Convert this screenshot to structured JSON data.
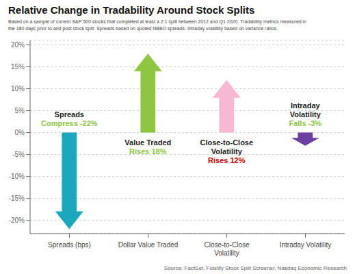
{
  "chart_data": {
    "type": "bar",
    "title": "Relative Change in Tradability Around Stock Splits",
    "subtitle": "Based on a sample of current S&P 500 stocks that completed at least a 2:1 split between 2012 and Q1 2020. Tradability metrics measured in\nthe 180 days prior to and post stock split. Spreads based on quoted NBBO spreads. Intraday volatility based on variance ratios.",
    "source": "Source: FactSet, Fidelity Stock Split Screener, Nasdaq Economic Research",
    "categories": [
      "Spreads (bps)",
      "Dollar Value Traded",
      "Close-to-Close\nVolatility",
      "Intraday Volatility"
    ],
    "values": [
      -22,
      18,
      12,
      -3
    ],
    "colors": [
      "#1aa8bf",
      "#8dc63f",
      "#f7b8d2",
      "#6b3fa0"
    ],
    "annotations": [
      {
        "title": "Spreads",
        "subtitle": "Compress -22%",
        "color": "#8dc63f"
      },
      {
        "title": "Value Traded",
        "subtitle": "Rises 18%",
        "color": "#8dc63f"
      },
      {
        "title": "Close-to-Close\nVolatility",
        "subtitle": "Rises 12%",
        "color": "#cc0000"
      },
      {
        "title": "Intraday\nVolatility",
        "subtitle": "Falls -3%",
        "color": "#8dc63f"
      }
    ],
    "ylim": [
      -23,
      21
    ],
    "yticks": [
      {
        "value": -20,
        "label": "-20%"
      },
      {
        "value": -15,
        "label": "-15%"
      },
      {
        "value": -10,
        "label": "-10%"
      },
      {
        "value": -5,
        "label": "-5%"
      },
      {
        "value": 0,
        "label": "0%"
      },
      {
        "value": 5,
        "label": "5%"
      },
      {
        "value": 10,
        "label": "10%"
      },
      {
        "value": 15,
        "label": "15%"
      },
      {
        "value": 20,
        "label": "20%"
      }
    ],
    "grid": true
  }
}
